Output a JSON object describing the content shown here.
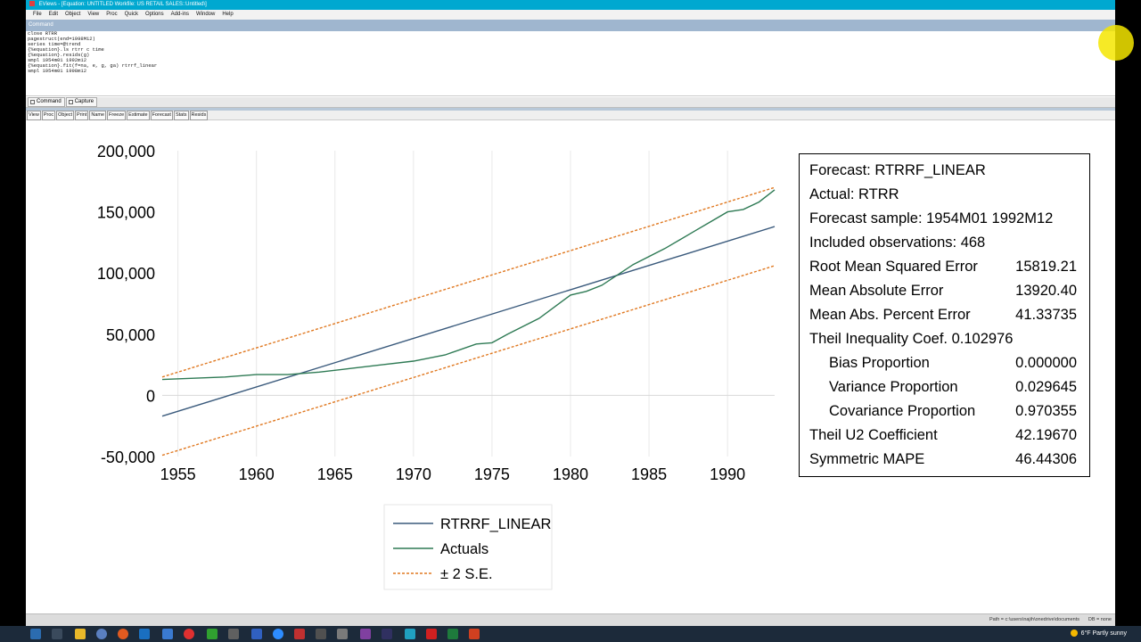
{
  "window": {
    "title": "EViews - [Equation: UNTITLED   Workfile: US RETAIL SALES::Untitled\\]"
  },
  "menu": [
    "File",
    "Edit",
    "Object",
    "View",
    "Proc",
    "Quick",
    "Options",
    "Add-ins",
    "Window",
    "Help"
  ],
  "command_window": {
    "header": "Command",
    "lines": [
      "close RTRR",
      "pagestruct(end=1998M12)",
      "series time=@trend",
      "{%equation}.ls rtrr c time",
      "{%equation}.resids(g)",
      "smpl 1954m01 1992m12",
      "{%equation}.fit(f=na, e, g, ga) rtrrf_linear",
      "smpl 1954m01 1998m12"
    ],
    "tabs": [
      "Command",
      "Capture"
    ]
  },
  "object_toolbar": [
    "View",
    "Proc",
    "Object",
    "Print",
    "Name",
    "Freeze",
    "Estimate",
    "Forecast",
    "Stats",
    "Resids"
  ],
  "forecast_stats": {
    "forecast_label": "Forecast: RTRRF_LINEAR",
    "actual_label": "Actual: RTRR",
    "sample_label": "Forecast sample: 1954M01 1992M12",
    "obs_label": "Included observations: 468",
    "rows": [
      {
        "label": "Root Mean Squared Error",
        "value": "15819.21"
      },
      {
        "label": "Mean Absolute Error",
        "value": "13920.40"
      },
      {
        "label": "Mean Abs. Percent Error",
        "value": "41.33735"
      },
      {
        "label": "Theil Inequality Coef.  0.102976",
        "value": ""
      },
      {
        "label": "Bias Proportion",
        "value": "0.000000"
      },
      {
        "label": "Variance Proportion",
        "value": "0.029645"
      },
      {
        "label": "Covariance Proportion",
        "value": "0.970355"
      },
      {
        "label": "Theil U2 Coefficient",
        "value": "42.19670"
      },
      {
        "label": "Symmetric MAPE",
        "value": "46.44306"
      }
    ]
  },
  "statusbar": {
    "path": "Path = c:\\users\\najih\\onedrive\\documents",
    "db": "DB = none"
  },
  "taskbar": {
    "weather": "6°F  Partly sunny"
  },
  "chart_data": {
    "type": "line",
    "xlim": [
      1954.0,
      1993.0
    ],
    "ylim": [
      -50000,
      200000
    ],
    "x_ticks": [
      "1955",
      "1960",
      "1965",
      "1970",
      "1975",
      "1980",
      "1985",
      "1990"
    ],
    "y_ticks": [
      "200,000",
      "150,000",
      "100,000",
      "50,000",
      "0",
      "-50,000"
    ],
    "grid": "vertical",
    "legend_position": "bottom",
    "series": [
      {
        "name": "RTRRF_LINEAR",
        "color": "#3a5a7c",
        "style": "solid",
        "x": [
          1954.0,
          1993.0
        ],
        "y": [
          -17000,
          138000
        ]
      },
      {
        "name": "Actuals",
        "color": "#2e7a54",
        "style": "solid",
        "x": [
          1954.0,
          1956,
          1958,
          1960,
          1962,
          1964,
          1966,
          1968,
          1970,
          1972,
          1974,
          1975,
          1976,
          1978,
          1980,
          1981,
          1982,
          1984,
          1986,
          1988,
          1990,
          1991,
          1992,
          1993.0
        ],
        "y": [
          13000,
          14000,
          15000,
          17000,
          17000,
          19000,
          22000,
          25000,
          28000,
          33000,
          42000,
          43000,
          50000,
          63000,
          82000,
          85000,
          90000,
          107000,
          120000,
          135000,
          150000,
          152000,
          158000,
          168000
        ]
      },
      {
        "name": "± 2 S.E.",
        "color": "#e07820",
        "style": "dashed",
        "x": [
          1954.0,
          1993.0
        ],
        "y": [
          15000,
          170000
        ]
      },
      {
        "name": "± 2 S.E. lower",
        "color": "#e07820",
        "style": "dashed",
        "x": [
          1954.0,
          1993.0
        ],
        "y": [
          -49000,
          106000
        ]
      }
    ]
  }
}
